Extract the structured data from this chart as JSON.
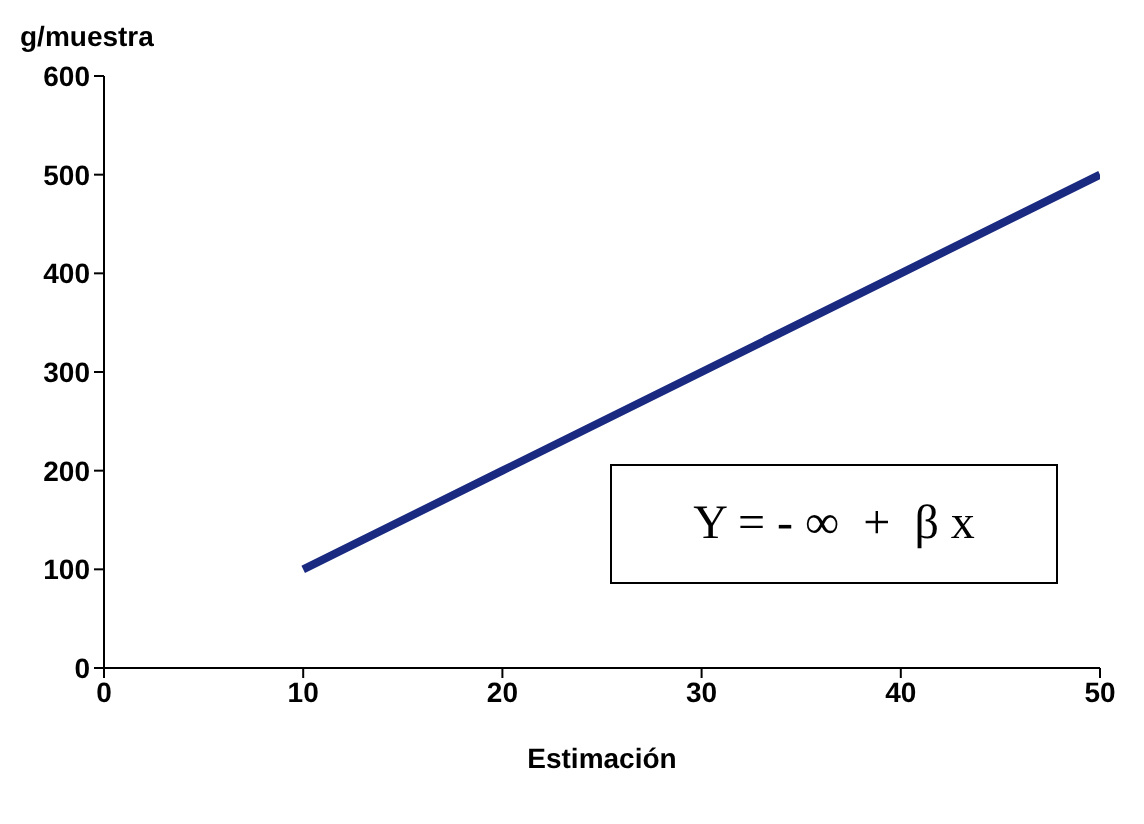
{
  "chart_data": {
    "type": "line",
    "xlabel": "Estimación",
    "ylabel": "g/muestra",
    "x": [
      10,
      20,
      30,
      40,
      50
    ],
    "series": [
      {
        "color": "#1a2a80",
        "values": [
          100,
          200,
          300,
          400,
          500
        ]
      }
    ],
    "xlim": [
      0,
      50
    ],
    "xticks": [
      0,
      10,
      20,
      30,
      40,
      50
    ],
    "ylim": [
      0,
      600
    ],
    "yticks": [
      0,
      100,
      200,
      300,
      400,
      500,
      600
    ],
    "annotations": [
      "Y = - ∞  +  β x"
    ]
  }
}
